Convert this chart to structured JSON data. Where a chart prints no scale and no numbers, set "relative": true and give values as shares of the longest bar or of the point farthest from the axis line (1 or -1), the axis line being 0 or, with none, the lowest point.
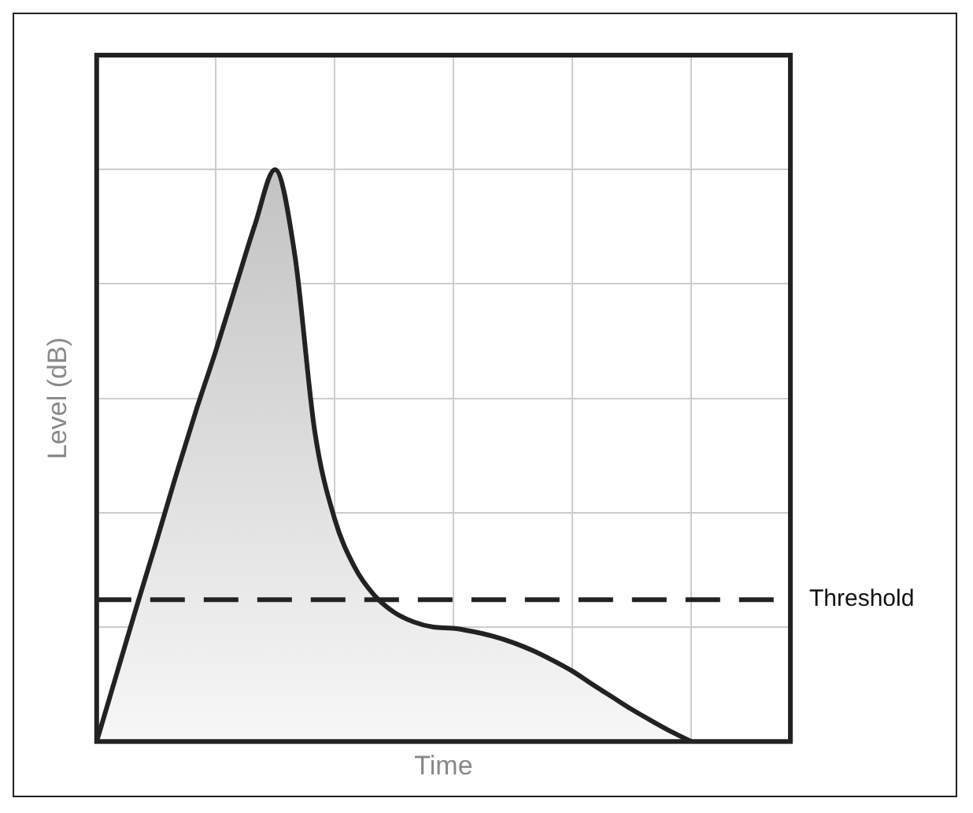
{
  "chart_data": {
    "type": "area",
    "relative": true,
    "xlabel": "Time",
    "ylabel": "Level (dB)",
    "grid": true,
    "tick_labels": false,
    "legend": false,
    "categories": [
      null,
      null,
      null,
      null,
      null,
      null,
      null,
      null,
      null,
      null,
      null,
      null,
      null,
      null,
      null,
      null,
      null,
      null,
      null,
      null,
      null,
      null,
      null,
      null,
      null,
      null,
      null,
      null,
      null,
      null,
      null,
      null,
      null,
      null,
      null,
      null
    ],
    "series": [
      {
        "color": "#222222",
        "values": [
          0,
          0.117,
          0.234,
          0.348,
          0.465,
          0.577,
          0.682,
          0.794,
          0.905,
          1,
          0.85,
          0.543,
          0.39,
          0.306,
          0.256,
          0.226,
          0.209,
          0.2,
          0.198,
          0.192,
          0.184,
          0.173,
          0.159,
          0.142,
          0.123,
          0.1,
          0.078,
          0.056,
          0.036,
          0.017,
          0,
          null,
          null,
          null,
          null,
          null
        ]
      }
    ],
    "ref_lines": [
      {
        "axis": "y",
        "value": 0.248,
        "label": "Threshold",
        "line_style": "dashed",
        "color": "#222222"
      }
    ]
  }
}
